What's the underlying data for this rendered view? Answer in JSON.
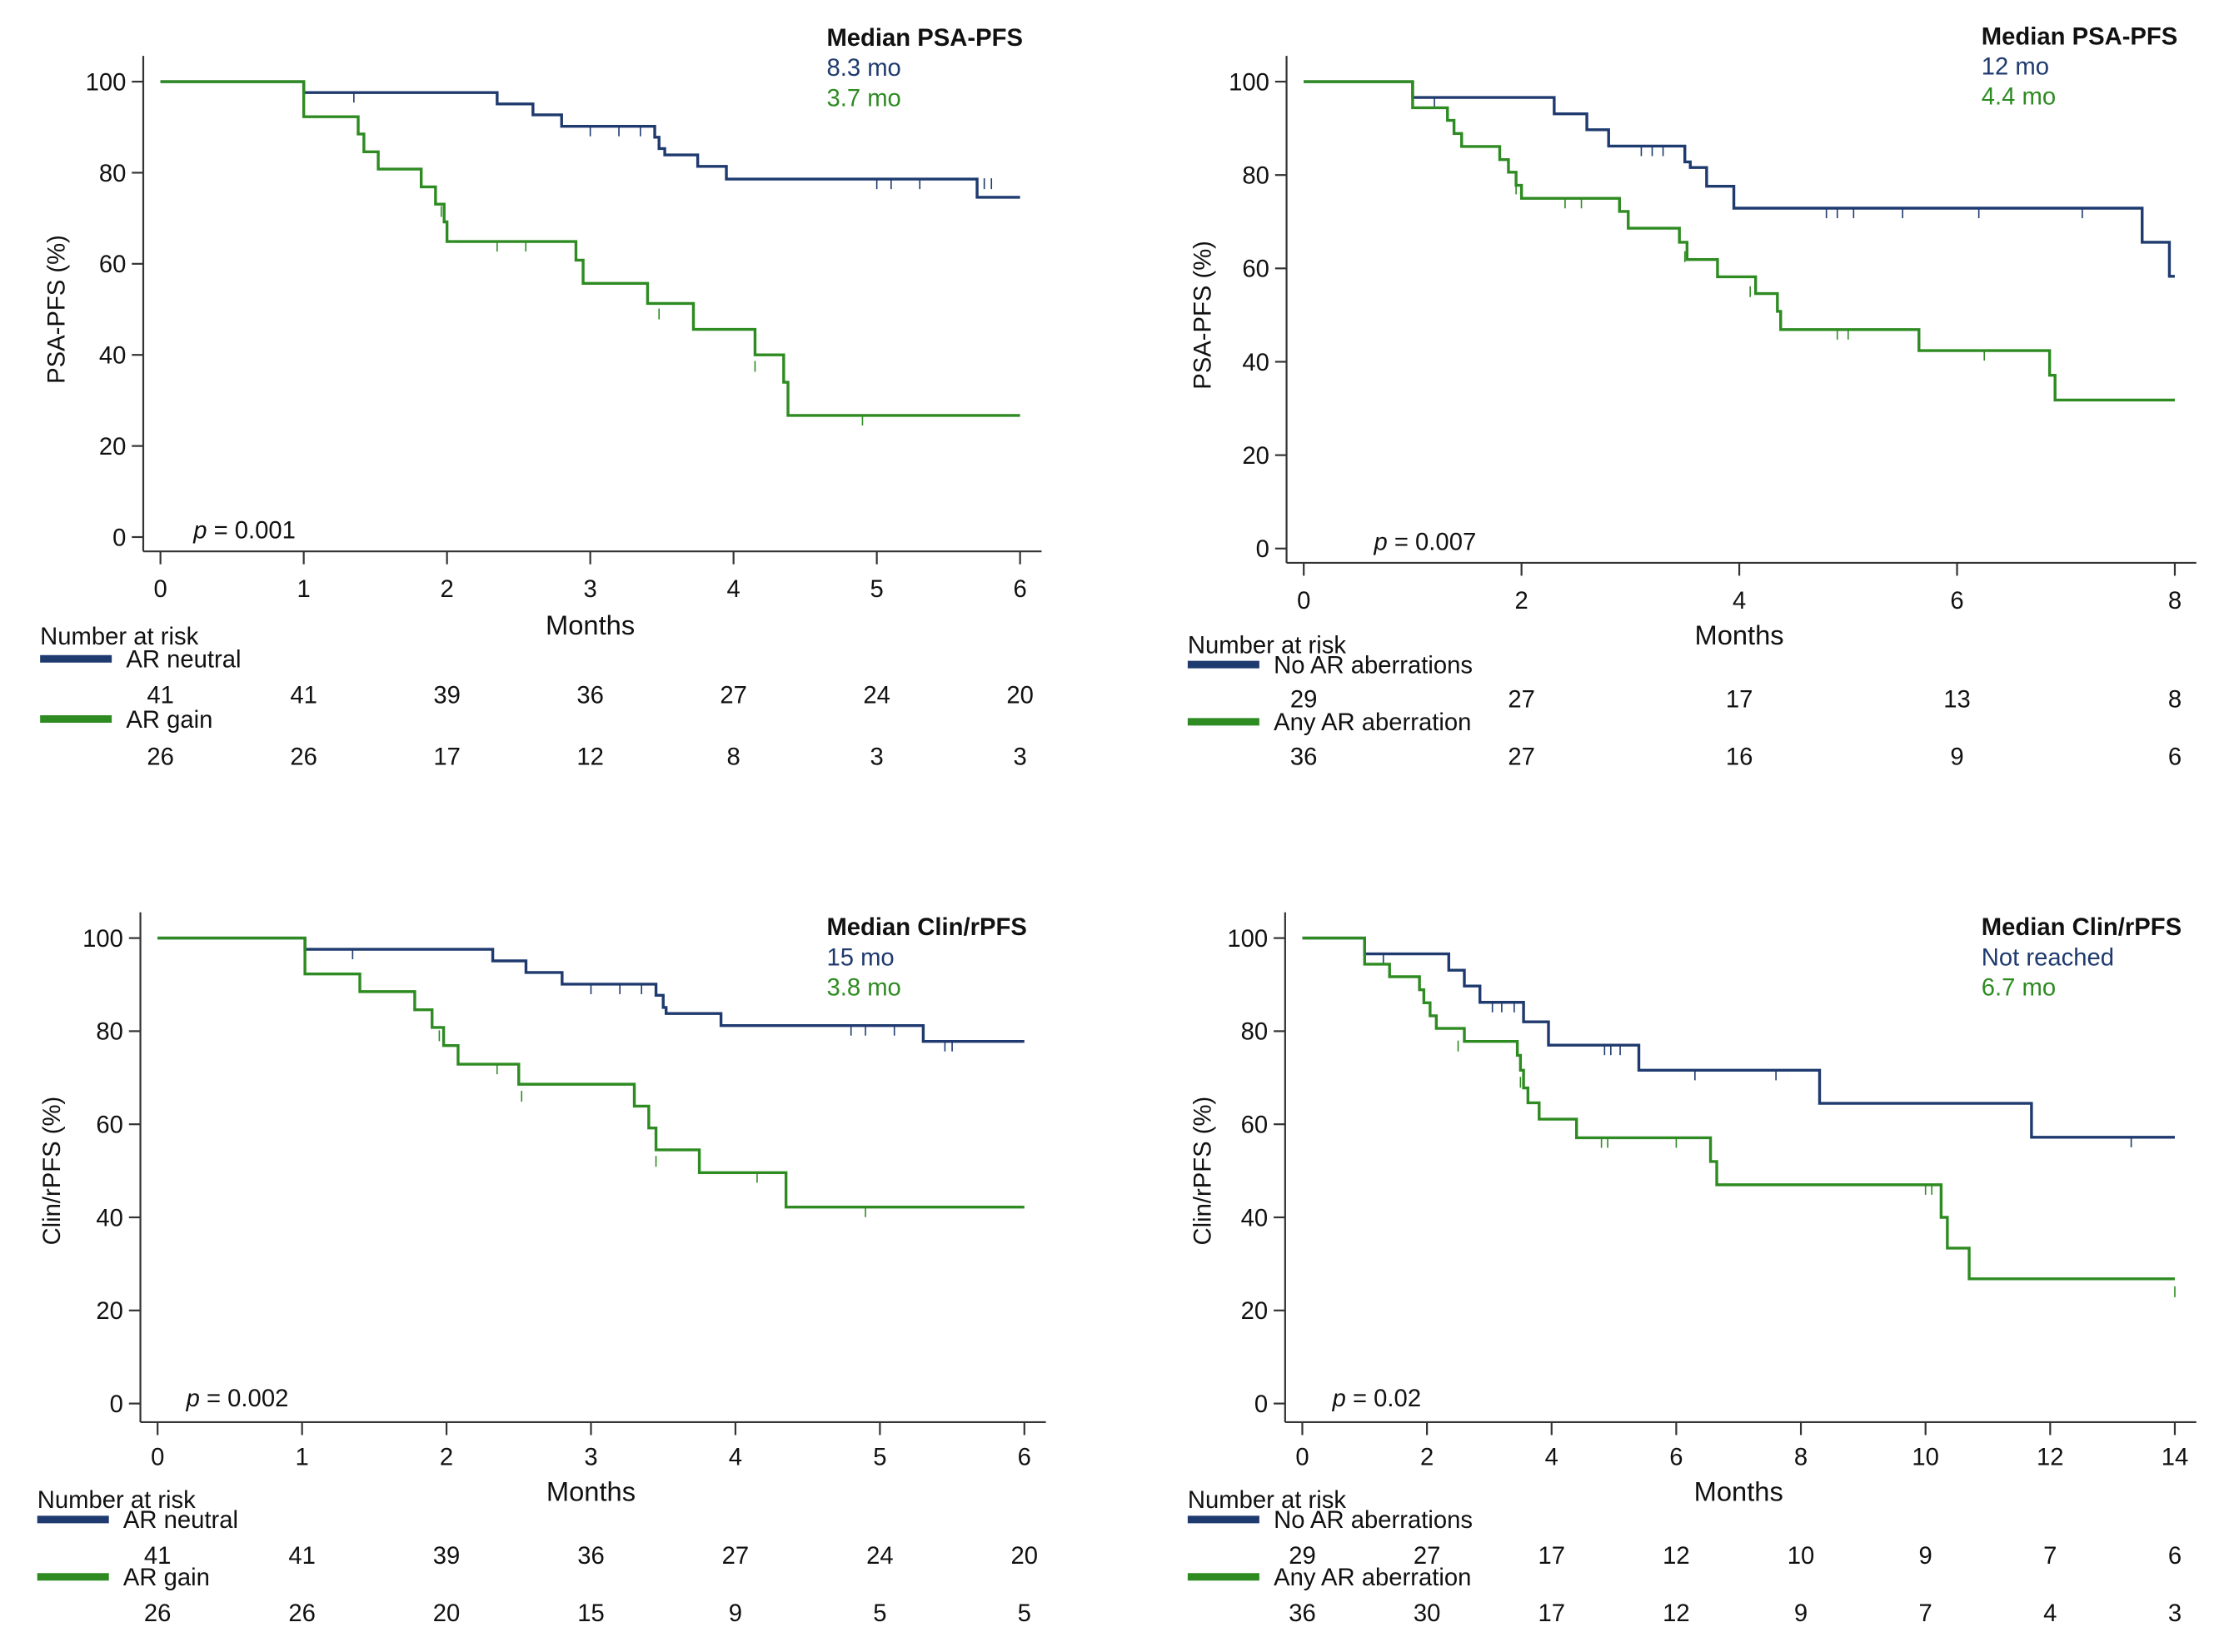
{
  "colors": {
    "blue": "#1f3a6e",
    "green": "#2e8b22",
    "axis": "#333333",
    "text": "#111111"
  },
  "chart_data": [
    {
      "type": "line",
      "subtype": "kaplan-meier",
      "ylabel": "PSA-PFS (%)",
      "xlabel": "Months",
      "xlim": [
        0,
        6
      ],
      "ylim": [
        0,
        100
      ],
      "xticks": [
        0,
        1,
        2,
        3,
        4,
        5,
        6
      ],
      "yticks": [
        0,
        20,
        40,
        60,
        80,
        100
      ],
      "p_label": "p",
      "p_text": " = 0.001",
      "median_title": "Median PSA-PFS",
      "risk_title": "Number at risk",
      "series": [
        {
          "name": "AR neutral",
          "color": "#1f3a6e",
          "median": "8.3 mo",
          "steps": [
            [
              0,
              100
            ],
            [
              1,
              97.6
            ],
            [
              2.35,
              95.1
            ],
            [
              2.6,
              92.7
            ],
            [
              2.8,
              90.2
            ],
            [
              3.45,
              87.8
            ],
            [
              3.48,
              85.3
            ],
            [
              3.52,
              83.9
            ],
            [
              3.75,
              81.4
            ],
            [
              3.95,
              78.6
            ],
            [
              5.7,
              74.6
            ],
            [
              6.0,
              74.6
            ]
          ],
          "censored": [
            [
              1.35,
              97.6
            ],
            [
              3.0,
              90.2
            ],
            [
              3.2,
              90.2
            ],
            [
              3.35,
              90.2
            ],
            [
              5.0,
              78.6
            ],
            [
              5.1,
              78.6
            ],
            [
              5.3,
              78.6
            ],
            [
              5.75,
              78.6
            ],
            [
              5.8,
              78.6
            ]
          ],
          "at_risk": [
            41,
            41,
            39,
            36,
            27,
            24,
            20
          ]
        },
        {
          "name": "AR gain",
          "color": "#2e8b22",
          "median": "3.7 mo",
          "steps": [
            [
              0,
              100
            ],
            [
              1,
              92.3
            ],
            [
              1.38,
              88.5
            ],
            [
              1.42,
              84.6
            ],
            [
              1.52,
              80.8
            ],
            [
              1.82,
              76.9
            ],
            [
              1.92,
              73.1
            ],
            [
              1.98,
              69.2
            ],
            [
              2.0,
              64.9
            ],
            [
              2.9,
              60.8
            ],
            [
              2.95,
              55.7
            ],
            [
              3.4,
              51.3
            ],
            [
              3.72,
              45.6
            ],
            [
              4.15,
              40.0
            ],
            [
              4.35,
              34.0
            ],
            [
              4.38,
              26.7
            ],
            [
              6.0,
              26.7
            ]
          ],
          "censored": [
            [
              1.96,
              72.5
            ],
            [
              2.35,
              64.9
            ],
            [
              2.55,
              64.9
            ],
            [
              3.48,
              50.0
            ],
            [
              4.15,
              38.5
            ],
            [
              4.9,
              26.7
            ]
          ],
          "at_risk": [
            26,
            26,
            17,
            12,
            8,
            3,
            3
          ]
        }
      ]
    },
    {
      "type": "line",
      "subtype": "kaplan-meier",
      "ylabel": "PSA-PFS (%)",
      "xlabel": "Months",
      "xlim": [
        0,
        8
      ],
      "ylim": [
        0,
        100
      ],
      "xticks": [
        0,
        2,
        4,
        6,
        8
      ],
      "yticks": [
        0,
        20,
        40,
        60,
        80,
        100
      ],
      "p_label": "p",
      "p_text": " = 0.007",
      "median_title": "Median PSA-PFS",
      "risk_title": "Number at risk",
      "series": [
        {
          "name": "No AR aberrations",
          "color": "#1f3a6e",
          "median": "12 mo",
          "steps": [
            [
              0,
              100
            ],
            [
              1.0,
              96.6
            ],
            [
              2.3,
              93.1
            ],
            [
              2.6,
              89.7
            ],
            [
              2.8,
              86.2
            ],
            [
              3.5,
              82.8
            ],
            [
              3.55,
              81.6
            ],
            [
              3.7,
              77.6
            ],
            [
              3.95,
              72.9
            ],
            [
              7.7,
              65.6
            ],
            [
              7.95,
              58.3
            ],
            [
              8.0,
              58.3
            ]
          ],
          "censored": [
            [
              1.2,
              96.6
            ],
            [
              3.1,
              86.2
            ],
            [
              3.2,
              86.2
            ],
            [
              3.3,
              86.2
            ],
            [
              4.8,
              72.9
            ],
            [
              4.9,
              72.9
            ],
            [
              5.05,
              72.9
            ],
            [
              5.5,
              72.9
            ],
            [
              6.2,
              72.9
            ],
            [
              7.15,
              72.9
            ]
          ],
          "at_risk": [
            29,
            27,
            17,
            13,
            8
          ]
        },
        {
          "name": "Any AR aberration",
          "color": "#2e8b22",
          "median": "4.4 mo",
          "steps": [
            [
              0,
              100
            ],
            [
              1.0,
              94.4
            ],
            [
              1.32,
              91.7
            ],
            [
              1.38,
              88.9
            ],
            [
              1.45,
              86.1
            ],
            [
              1.8,
              83.3
            ],
            [
              1.88,
              80.6
            ],
            [
              1.95,
              77.8
            ],
            [
              2.0,
              75.0
            ],
            [
              2.9,
              72.2
            ],
            [
              2.98,
              68.6
            ],
            [
              3.45,
              65.6
            ],
            [
              3.52,
              61.9
            ],
            [
              3.8,
              58.2
            ],
            [
              4.15,
              54.6
            ],
            [
              4.35,
              50.8
            ],
            [
              4.38,
              46.9
            ],
            [
              5.65,
              42.4
            ],
            [
              6.85,
              37.1
            ],
            [
              6.9,
              31.8
            ],
            [
              8.0,
              31.8
            ]
          ],
          "censored": [
            [
              1.95,
              78.0
            ],
            [
              2.4,
              75.0
            ],
            [
              2.55,
              75.0
            ],
            [
              3.5,
              63.5
            ],
            [
              4.1,
              56.0
            ],
            [
              4.9,
              46.9
            ],
            [
              5.0,
              46.9
            ],
            [
              6.25,
              42.4
            ]
          ],
          "at_risk": [
            36,
            27,
            16,
            9,
            6
          ]
        }
      ]
    },
    {
      "type": "line",
      "subtype": "kaplan-meier",
      "ylabel": "Clin/rPFS (%)",
      "xlabel": "Months",
      "xlim": [
        0,
        6
      ],
      "ylim": [
        0,
        100
      ],
      "xticks": [
        0,
        1,
        2,
        3,
        4,
        5,
        6
      ],
      "yticks": [
        0,
        20,
        40,
        60,
        80,
        100
      ],
      "p_label": "p",
      "p_text": " = 0.002",
      "median_title": "Median Clin/rPFS",
      "risk_title": "Number at risk",
      "series": [
        {
          "name": "AR neutral",
          "color": "#1f3a6e",
          "median": "15 mo",
          "steps": [
            [
              0,
              100
            ],
            [
              1.02,
              97.6
            ],
            [
              2.32,
              95.1
            ],
            [
              2.55,
              92.6
            ],
            [
              2.8,
              90.1
            ],
            [
              3.45,
              87.7
            ],
            [
              3.5,
              85.1
            ],
            [
              3.52,
              83.8
            ],
            [
              3.9,
              81.2
            ],
            [
              5.3,
              77.8
            ],
            [
              6.0,
              77.8
            ]
          ],
          "censored": [
            [
              1.35,
              97.6
            ],
            [
              3.0,
              90.1
            ],
            [
              3.2,
              90.1
            ],
            [
              3.35,
              90.1
            ],
            [
              4.8,
              81.2
            ],
            [
              4.9,
              81.2
            ],
            [
              5.1,
              81.2
            ],
            [
              5.45,
              77.8
            ],
            [
              5.5,
              77.8
            ]
          ],
          "at_risk": [
            41,
            41,
            39,
            36,
            27,
            24,
            20
          ]
        },
        {
          "name": "AR gain",
          "color": "#2e8b22",
          "median": "3.8 mo",
          "steps": [
            [
              0,
              100
            ],
            [
              1.02,
              92.3
            ],
            [
              1.4,
              88.5
            ],
            [
              1.78,
              84.6
            ],
            [
              1.9,
              80.8
            ],
            [
              1.98,
              76.9
            ],
            [
              2.08,
              72.9
            ],
            [
              2.5,
              68.6
            ],
            [
              3.3,
              63.9
            ],
            [
              3.4,
              59.2
            ],
            [
              3.45,
              54.5
            ],
            [
              3.75,
              49.6
            ],
            [
              4.35,
              42.2
            ],
            [
              6.0,
              42.2
            ]
          ],
          "censored": [
            [
              1.95,
              80.0
            ],
            [
              2.35,
              72.9
            ],
            [
              2.52,
              67.0
            ],
            [
              3.45,
              53.0
            ],
            [
              4.15,
              49.6
            ],
            [
              4.9,
              42.2
            ]
          ],
          "at_risk": [
            26,
            26,
            20,
            15,
            9,
            5,
            5
          ]
        }
      ]
    },
    {
      "type": "line",
      "subtype": "kaplan-meier",
      "ylabel": "Clin/rPFS (%)",
      "xlabel": "Months",
      "xlim": [
        0,
        14
      ],
      "ylim": [
        0,
        100
      ],
      "xticks": [
        0,
        2,
        4,
        6,
        8,
        10,
        12,
        14
      ],
      "yticks": [
        0,
        20,
        40,
        60,
        80,
        100
      ],
      "p_label": "p",
      "p_text": " = 0.02",
      "median_title": "Median Clin/rPFS",
      "risk_title": "Number at risk",
      "series": [
        {
          "name": "No AR aberrations",
          "color": "#1f3a6e",
          "median": "Not reached",
          "steps": [
            [
              0,
              100
            ],
            [
              1.0,
              96.6
            ],
            [
              2.35,
              93.1
            ],
            [
              2.6,
              89.7
            ],
            [
              2.85,
              86.2
            ],
            [
              3.55,
              82.0
            ],
            [
              3.95,
              77.0
            ],
            [
              5.4,
              71.6
            ],
            [
              8.3,
              64.5
            ],
            [
              11.7,
              57.2
            ],
            [
              14.0,
              57.2
            ]
          ],
          "censored": [
            [
              1.3,
              96.6
            ],
            [
              3.05,
              86.2
            ],
            [
              3.2,
              86.2
            ],
            [
              3.4,
              86.2
            ],
            [
              4.85,
              77.0
            ],
            [
              4.95,
              77.0
            ],
            [
              5.1,
              77.0
            ],
            [
              6.3,
              71.6
            ],
            [
              7.6,
              71.6
            ],
            [
              13.3,
              57.2
            ]
          ],
          "at_risk": [
            29,
            27,
            17,
            12,
            10,
            9,
            7,
            6
          ]
        },
        {
          "name": "Any AR aberration",
          "color": "#2e8b22",
          "median": "6.7 mo",
          "steps": [
            [
              0,
              100
            ],
            [
              1.0,
              94.4
            ],
            [
              1.4,
              91.7
            ],
            [
              1.88,
              88.9
            ],
            [
              1.95,
              86.1
            ],
            [
              2.05,
              83.3
            ],
            [
              2.15,
              80.6
            ],
            [
              2.6,
              77.8
            ],
            [
              3.45,
              74.8
            ],
            [
              3.5,
              71.6
            ],
            [
              3.55,
              67.8
            ],
            [
              3.62,
              64.6
            ],
            [
              3.8,
              61.1
            ],
            [
              4.4,
              57.1
            ],
            [
              6.55,
              52.0
            ],
            [
              6.65,
              47.0
            ],
            [
              10.25,
              40.0
            ],
            [
              10.35,
              33.4
            ],
            [
              10.7,
              26.8
            ],
            [
              14.0,
              26.8
            ]
          ],
          "censored": [
            [
              2.5,
              77.8
            ],
            [
              3.5,
              70.0
            ],
            [
              4.8,
              57.1
            ],
            [
              4.9,
              57.1
            ],
            [
              6.0,
              57.1
            ],
            [
              10.0,
              47.0
            ],
            [
              10.1,
              47.0
            ],
            [
              14.0,
              25.0
            ]
          ],
          "at_risk": [
            36,
            30,
            17,
            12,
            9,
            7,
            4,
            3
          ]
        }
      ]
    }
  ]
}
